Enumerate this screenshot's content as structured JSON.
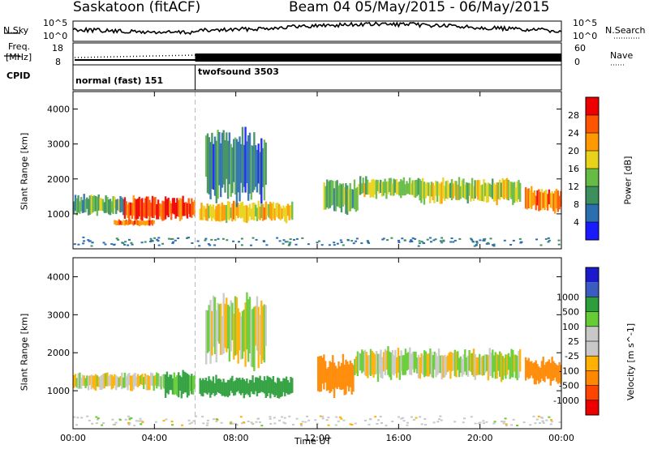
{
  "header": {
    "station": "Saskatoon (fitACF)",
    "beam_dates": "Beam 04 05/May/2015 - 06/May/2015"
  },
  "strip_nsky": {
    "left_label": "N.Sky",
    "left_ticks": [
      "10^5",
      "10^0"
    ],
    "right_label": "N.Search",
    "right_ticks": [
      "10^5",
      "10^0"
    ]
  },
  "strip_freq": {
    "left_label_1": "Freq.",
    "left_label_2": "[MHz]",
    "left_ticks": [
      "18",
      "8"
    ],
    "right_label": "Nave",
    "right_ticks": [
      "60",
      "0"
    ]
  },
  "strip_cpid": {
    "label": "CPID",
    "modes": [
      {
        "name": "normal (fast) 151",
        "start_hour": 0,
        "end_hour": 6
      },
      {
        "name": "twofsound 3503",
        "start_hour": 6,
        "end_hour": 24
      }
    ]
  },
  "colors": {
    "power_scale": [
      "#1a1aff",
      "#2b6fb0",
      "#3e8f5e",
      "#66bb44",
      "#e8d21a",
      "#ff9900",
      "#ff5500",
      "#ee0000"
    ],
    "velocity_scale": [
      "#ee0000",
      "#ff4400",
      "#ff8800",
      "#ffb000",
      "#c8c8c8",
      "#c8c8c8",
      "#66cc33",
      "#2d9e3c",
      "#3a5cc0",
      "#1a1acc"
    ]
  },
  "chart_data": [
    {
      "type": "heatmap",
      "title": "",
      "xlabel": "Time UT",
      "ylabel": "Slant Range [km]",
      "xlim": [
        0,
        24
      ],
      "ylim": [
        0,
        4500
      ],
      "x_ticks": [
        "00:00",
        "04:00",
        "08:00",
        "12:00",
        "16:00",
        "20:00",
        "00:00"
      ],
      "y_ticks": [
        1000,
        2000,
        3000,
        4000
      ],
      "colorbar": {
        "label": "Power [dB]",
        "range": [
          0,
          32
        ],
        "ticks": [
          4,
          8,
          12,
          16,
          20,
          24,
          28
        ]
      },
      "bands": [
        {
          "t0": 0.0,
          "t1": 2.5,
          "r_center": 1250,
          "r_halfwidth": 250,
          "value": 12
        },
        {
          "t0": 2.5,
          "t1": 6.0,
          "r_center": 1150,
          "r_halfwidth": 300,
          "value": 28
        },
        {
          "t0": 2.0,
          "t1": 4.0,
          "r_center": 750,
          "r_halfwidth": 80,
          "value": 24
        },
        {
          "t0": 6.2,
          "t1": 10.8,
          "r_center": 1050,
          "r_halfwidth": 250,
          "value": 20
        },
        {
          "t0": 6.5,
          "t1": 9.5,
          "r_center": 2400,
          "r_halfwidth": 900,
          "value": 8
        },
        {
          "t0": 12.3,
          "t1": 14.0,
          "r_center": 1500,
          "r_halfwidth": 400,
          "value": 12
        },
        {
          "t0": 14.0,
          "t1": 17.0,
          "r_center": 1750,
          "r_halfwidth": 250,
          "value": 16
        },
        {
          "t0": 17.0,
          "t1": 22.0,
          "r_center": 1650,
          "r_halfwidth": 300,
          "value": 16
        },
        {
          "t0": 22.2,
          "t1": 24.0,
          "r_center": 1400,
          "r_halfwidth": 300,
          "value": 24
        }
      ]
    },
    {
      "type": "heatmap",
      "title": "",
      "xlabel": "Time UT",
      "ylabel": "Slant Range [km]",
      "xlim": [
        0,
        24
      ],
      "ylim": [
        0,
        4500
      ],
      "x_ticks": [
        "00:00",
        "04:00",
        "08:00",
        "12:00",
        "16:00",
        "20:00",
        "00:00"
      ],
      "y_ticks": [
        1000,
        2000,
        3000,
        4000
      ],
      "colorbar": {
        "label": "Velocity [m s^-1]",
        "ticks": [
          "-1000",
          "-500",
          "-100",
          "-25",
          "25",
          "100",
          "500",
          "1000"
        ]
      },
      "bands": [
        {
          "t0": 0.0,
          "t1": 4.5,
          "r_center": 1250,
          "r_halfwidth": 200,
          "value": 0
        },
        {
          "t0": 4.5,
          "t1": 6.0,
          "r_center": 1150,
          "r_halfwidth": 300,
          "value": 150
        },
        {
          "t0": 6.2,
          "t1": 10.8,
          "r_center": 1100,
          "r_halfwidth": 250,
          "value": 200
        },
        {
          "t0": 6.5,
          "t1": 9.5,
          "r_center": 2600,
          "r_halfwidth": 800,
          "value": 0
        },
        {
          "t0": 12.0,
          "t1": 13.8,
          "r_center": 1400,
          "r_halfwidth": 450,
          "value": -300
        },
        {
          "t0": 13.8,
          "t1": 22.0,
          "r_center": 1700,
          "r_halfwidth": 350,
          "value": 0
        },
        {
          "t0": 22.2,
          "t1": 24.0,
          "r_center": 1500,
          "r_halfwidth": 300,
          "value": -200
        }
      ]
    }
  ]
}
